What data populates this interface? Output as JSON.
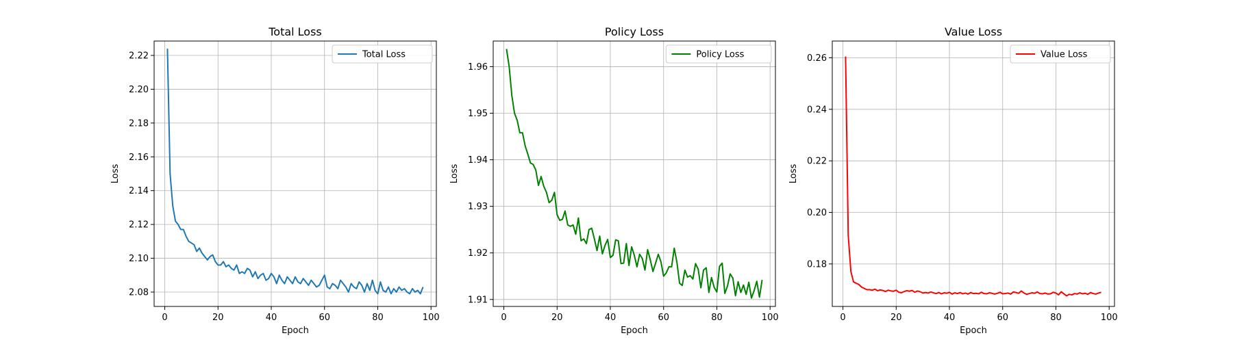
{
  "chart_data": [
    {
      "type": "line",
      "title": "Total Loss",
      "xlabel": "Epoch",
      "ylabel": "Loss",
      "xlim": [
        -4,
        102
      ],
      "ylim": [
        2.0715,
        2.2285
      ],
      "xticks": [
        0,
        20,
        40,
        60,
        80,
        100
      ],
      "yticks": [
        2.08,
        2.1,
        2.12,
        2.14,
        2.16,
        2.18,
        2.2,
        2.22
      ],
      "ytick_decimals": 2,
      "grid": true,
      "legend": "top-right",
      "series": [
        {
          "name": "Total Loss",
          "color": "#1f77b4",
          "x": [
            1,
            2,
            3,
            4,
            5,
            6,
            7,
            8,
            9,
            10,
            11,
            12,
            13,
            14,
            15,
            16,
            17,
            18,
            19,
            20,
            21,
            22,
            23,
            24,
            25,
            26,
            27,
            28,
            29,
            30,
            31,
            32,
            33,
            34,
            35,
            36,
            37,
            38,
            39,
            40,
            41,
            42,
            43,
            44,
            45,
            46,
            47,
            48,
            49,
            50,
            51,
            52,
            53,
            54,
            55,
            56,
            57,
            58,
            59,
            60,
            61,
            62,
            63,
            64,
            65,
            66,
            67,
            68,
            69,
            70,
            71,
            72,
            73,
            74,
            75,
            76,
            77,
            78,
            79,
            80,
            81,
            82,
            83,
            84,
            85,
            86,
            87,
            88,
            89,
            90,
            91,
            92,
            93,
            94,
            95,
            96,
            97
          ],
          "y": [
            2.224,
            2.15,
            2.131,
            2.122,
            2.12,
            2.117,
            2.117,
            2.113,
            2.11,
            2.109,
            2.108,
            2.104,
            2.106,
            2.103,
            2.101,
            2.099,
            2.101,
            2.102,
            2.098,
            2.096,
            2.096,
            2.098,
            2.095,
            2.096,
            2.094,
            2.093,
            2.096,
            2.091,
            2.092,
            2.091,
            2.094,
            2.093,
            2.089,
            2.092,
            2.088,
            2.09,
            2.091,
            2.087,
            2.088,
            2.091,
            2.089,
            2.085,
            2.09,
            2.087,
            2.085,
            2.089,
            2.087,
            2.085,
            2.089,
            2.086,
            2.085,
            2.088,
            2.086,
            2.084,
            2.087,
            2.085,
            2.083,
            2.084,
            2.087,
            2.09,
            2.083,
            2.082,
            2.085,
            2.084,
            2.082,
            2.087,
            2.085,
            2.083,
            2.08,
            2.085,
            2.083,
            2.082,
            2.086,
            2.084,
            2.08,
            2.085,
            2.081,
            2.087,
            2.081,
            2.079,
            2.086,
            2.081,
            2.08,
            2.083,
            2.079,
            2.082,
            2.08,
            2.083,
            2.081,
            2.082,
            2.08,
            2.079,
            2.082,
            2.08,
            2.081,
            2.079,
            2.083
          ]
        }
      ]
    },
    {
      "type": "line",
      "title": "Policy Loss",
      "xlabel": "Epoch",
      "ylabel": "Loss",
      "xlim": [
        -4,
        102
      ],
      "ylim": [
        1.9085,
        1.9655
      ],
      "xticks": [
        0,
        20,
        40,
        60,
        80,
        100
      ],
      "yticks": [
        1.91,
        1.92,
        1.93,
        1.94,
        1.95,
        1.96
      ],
      "ytick_decimals": 2,
      "grid": true,
      "legend": "top-right",
      "series": [
        {
          "name": "Policy Loss",
          "color": "#008000",
          "x": [
            1,
            2,
            3,
            4,
            5,
            6,
            7,
            8,
            9,
            10,
            11,
            12,
            13,
            14,
            15,
            16,
            17,
            18,
            19,
            20,
            21,
            22,
            23,
            24,
            25,
            26,
            27,
            28,
            29,
            30,
            31,
            32,
            33,
            34,
            35,
            36,
            37,
            38,
            39,
            40,
            41,
            42,
            43,
            44,
            45,
            46,
            47,
            48,
            49,
            50,
            51,
            52,
            53,
            54,
            55,
            56,
            57,
            58,
            59,
            60,
            61,
            62,
            63,
            64,
            65,
            66,
            67,
            68,
            69,
            70,
            71,
            72,
            73,
            74,
            75,
            76,
            77,
            78,
            79,
            80,
            81,
            82,
            83,
            84,
            85,
            86,
            87,
            88,
            89,
            90,
            91,
            92,
            93,
            94,
            95,
            96,
            97
          ],
          "y": [
            1.9638,
            1.96,
            1.9538,
            1.95,
            1.9485,
            1.9458,
            1.9458,
            1.943,
            1.9412,
            1.9393,
            1.939,
            1.9378,
            1.9345,
            1.9364,
            1.9343,
            1.933,
            1.9308,
            1.9313,
            1.933,
            1.9282,
            1.927,
            1.9272,
            1.929,
            1.926,
            1.9257,
            1.926,
            1.924,
            1.9275,
            1.9226,
            1.923,
            1.922,
            1.925,
            1.9253,
            1.923,
            1.9205,
            1.9236,
            1.9198,
            1.9216,
            1.9229,
            1.919,
            1.9195,
            1.9228,
            1.9226,
            1.9177,
            1.9178,
            1.922,
            1.9173,
            1.9213,
            1.9195,
            1.917,
            1.9197,
            1.9188,
            1.9163,
            1.9207,
            1.9185,
            1.916,
            1.9178,
            1.9197,
            1.9181,
            1.915,
            1.9157,
            1.917,
            1.917,
            1.921,
            1.918,
            1.9135,
            1.913,
            1.9163,
            1.9148,
            1.9151,
            1.9144,
            1.9177,
            1.9165,
            1.9125,
            1.9163,
            1.9168,
            1.9115,
            1.9147,
            1.9126,
            1.9116,
            1.9171,
            1.9178,
            1.9113,
            1.9129,
            1.9155,
            1.9146,
            1.9108,
            1.9138,
            1.9115,
            1.9131,
            1.9111,
            1.9137,
            1.9103,
            1.9119,
            1.9139,
            1.9105,
            1.9142
          ]
        }
      ]
    },
    {
      "type": "line",
      "title": "Value Loss",
      "xlabel": "Epoch",
      "ylabel": "Loss",
      "xlim": [
        -4,
        102
      ],
      "ylim": [
        0.1635,
        0.2665
      ],
      "xticks": [
        0,
        20,
        40,
        60,
        80,
        100
      ],
      "yticks": [
        0.18,
        0.2,
        0.22,
        0.24,
        0.26
      ],
      "ytick_decimals": 2,
      "grid": true,
      "legend": "top-right",
      "series": [
        {
          "name": "Value Loss",
          "color": "#ff0000",
          "x": [
            1,
            2,
            3,
            4,
            5,
            6,
            7,
            8,
            9,
            10,
            11,
            12,
            13,
            14,
            15,
            16,
            17,
            18,
            19,
            20,
            21,
            22,
            23,
            24,
            25,
            26,
            27,
            28,
            29,
            30,
            31,
            32,
            33,
            34,
            35,
            36,
            37,
            38,
            39,
            40,
            41,
            42,
            43,
            44,
            45,
            46,
            47,
            48,
            49,
            50,
            51,
            52,
            53,
            54,
            55,
            56,
            57,
            58,
            59,
            60,
            61,
            62,
            63,
            64,
            65,
            66,
            67,
            68,
            69,
            70,
            71,
            72,
            73,
            74,
            75,
            76,
            77,
            78,
            79,
            80,
            81,
            82,
            83,
            84,
            85,
            86,
            87,
            88,
            89,
            90,
            91,
            92,
            93,
            94,
            95,
            96,
            97
          ],
          "y": [
            0.2605,
            0.191,
            0.177,
            0.173,
            0.1725,
            0.172,
            0.171,
            0.1705,
            0.17,
            0.17,
            0.1698,
            0.1702,
            0.1696,
            0.1699,
            0.1697,
            0.1693,
            0.1698,
            0.1695,
            0.1694,
            0.1698,
            0.169,
            0.1688,
            0.1693,
            0.1696,
            0.1694,
            0.1697,
            0.169,
            0.1695,
            0.1692,
            0.1687,
            0.1689,
            0.1687,
            0.1691,
            0.1688,
            0.1685,
            0.1689,
            0.1684,
            0.1688,
            0.1686,
            0.169,
            0.1683,
            0.1688,
            0.1685,
            0.1689,
            0.1684,
            0.1687,
            0.1683,
            0.1689,
            0.1685,
            0.1686,
            0.1684,
            0.169,
            0.1685,
            0.1684,
            0.1688,
            0.1686,
            0.1683,
            0.1686,
            0.169,
            0.1684,
            0.1685,
            0.1687,
            0.1683,
            0.1691,
            0.1689,
            0.1686,
            0.1695,
            0.1687,
            0.1682,
            0.1685,
            0.1688,
            0.1686,
            0.1691,
            0.1685,
            0.1684,
            0.1687,
            0.1683,
            0.1684,
            0.169,
            0.1687,
            0.168,
            0.1692,
            0.1684,
            0.1676,
            0.1682,
            0.168,
            0.1685,
            0.1683,
            0.1688,
            0.1684,
            0.1686,
            0.1682,
            0.1689,
            0.1685,
            0.1683,
            0.1687,
            0.169
          ]
        }
      ]
    }
  ]
}
